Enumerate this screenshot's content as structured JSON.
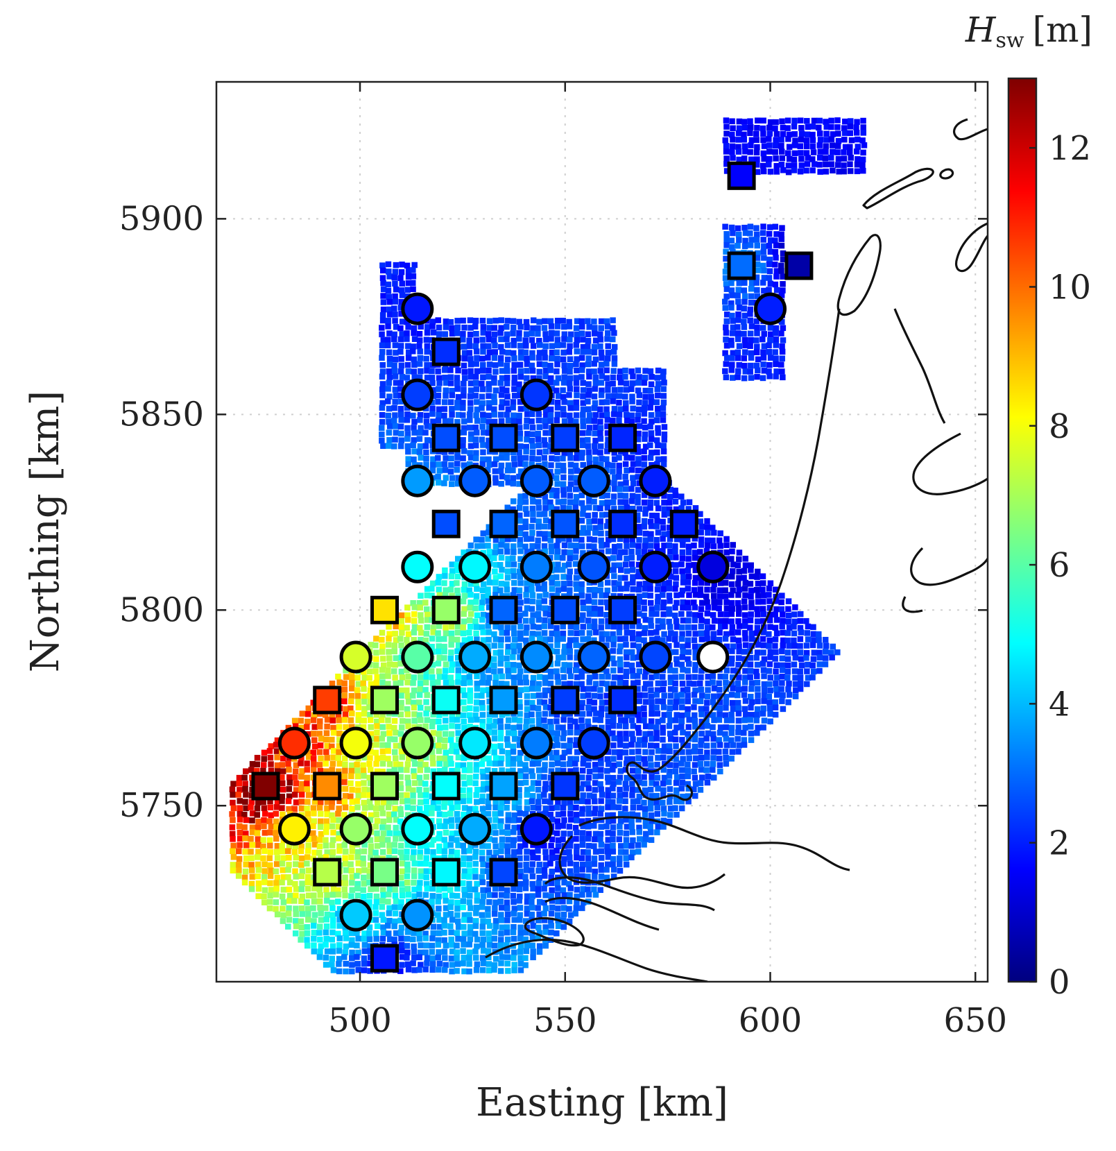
{
  "chart_data": {
    "type": "scatter",
    "title": "",
    "xlabel": "Easting [km]",
    "ylabel": "Northing [km]",
    "xlim": [
      465,
      653
    ],
    "ylim": [
      5705,
      5935
    ],
    "xticks": [
      500,
      550,
      600,
      650
    ],
    "yticks": [
      5750,
      5800,
      5850,
      5900
    ],
    "grid": true,
    "colorbar": {
      "label_main": "H",
      "label_sub": "sw",
      "label_unit": "[m]",
      "range": [
        0,
        13
      ],
      "ticks": [
        0,
        2,
        4,
        6,
        8,
        10,
        12
      ],
      "colormap": "jet"
    },
    "series": [
      {
        "marker": "circle",
        "points": [
          {
            "x": 514,
            "y": 5877,
            "v": 1.9
          },
          {
            "x": 600,
            "y": 5877,
            "v": 2.0
          },
          {
            "x": 514,
            "y": 5855,
            "v": 2.4
          },
          {
            "x": 543,
            "y": 5855,
            "v": 2.3
          },
          {
            "x": 514,
            "y": 5833,
            "v": 3.6
          },
          {
            "x": 528,
            "y": 5833,
            "v": 2.8
          },
          {
            "x": 543,
            "y": 5833,
            "v": 2.8
          },
          {
            "x": 557,
            "y": 5833,
            "v": 2.8
          },
          {
            "x": 572,
            "y": 5833,
            "v": 2.0
          },
          {
            "x": 514,
            "y": 5811,
            "v": 4.9
          },
          {
            "x": 528,
            "y": 5811,
            "v": 4.8
          },
          {
            "x": 543,
            "y": 5811,
            "v": 3.2
          },
          {
            "x": 557,
            "y": 5811,
            "v": 2.7
          },
          {
            "x": 572,
            "y": 5811,
            "v": 2.0
          },
          {
            "x": 586,
            "y": 5811,
            "v": 1.2
          },
          {
            "x": 499,
            "y": 5788,
            "v": 7.6
          },
          {
            "x": 514,
            "y": 5788,
            "v": 6.0
          },
          {
            "x": 528,
            "y": 5788,
            "v": 3.8
          },
          {
            "x": 543,
            "y": 5788,
            "v": 3.4
          },
          {
            "x": 557,
            "y": 5788,
            "v": 2.9
          },
          {
            "x": 572,
            "y": 5788,
            "v": 2.5
          },
          {
            "x": 484,
            "y": 5766,
            "v": 10.8
          },
          {
            "x": 499,
            "y": 5766,
            "v": 8.0
          },
          {
            "x": 514,
            "y": 5766,
            "v": 6.8
          },
          {
            "x": 528,
            "y": 5766,
            "v": 4.6
          },
          {
            "x": 543,
            "y": 5766,
            "v": 3.2
          },
          {
            "x": 557,
            "y": 5766,
            "v": 2.4
          },
          {
            "x": 484,
            "y": 5744,
            "v": 8.3
          },
          {
            "x": 499,
            "y": 5744,
            "v": 6.8
          },
          {
            "x": 514,
            "y": 5744,
            "v": 4.9
          },
          {
            "x": 528,
            "y": 5744,
            "v": 3.8
          },
          {
            "x": 543,
            "y": 5744,
            "v": 1.9
          },
          {
            "x": 499,
            "y": 5722,
            "v": 4.2
          },
          {
            "x": 514,
            "y": 5722,
            "v": 3.5
          }
        ]
      },
      {
        "marker": "square",
        "points": [
          {
            "x": 593,
            "y": 5911,
            "v": 1.6
          },
          {
            "x": 593,
            "y": 5888,
            "v": 3.0
          },
          {
            "x": 607,
            "y": 5888,
            "v": 0.5
          },
          {
            "x": 521,
            "y": 5866,
            "v": 2.2
          },
          {
            "x": 521,
            "y": 5844,
            "v": 2.6
          },
          {
            "x": 535,
            "y": 5844,
            "v": 2.6
          },
          {
            "x": 550,
            "y": 5844,
            "v": 2.4
          },
          {
            "x": 564,
            "y": 5844,
            "v": 2.1
          },
          {
            "x": 521,
            "y": 5822,
            "v": 2.6
          },
          {
            "x": 535,
            "y": 5822,
            "v": 2.9
          },
          {
            "x": 550,
            "y": 5822,
            "v": 2.7
          },
          {
            "x": 564,
            "y": 5822,
            "v": 2.2
          },
          {
            "x": 579,
            "y": 5822,
            "v": 2.0
          },
          {
            "x": 506,
            "y": 5800,
            "v": 8.5
          },
          {
            "x": 521,
            "y": 5800,
            "v": 6.8
          },
          {
            "x": 535,
            "y": 5800,
            "v": 2.9
          },
          {
            "x": 550,
            "y": 5800,
            "v": 2.6
          },
          {
            "x": 564,
            "y": 5800,
            "v": 2.4
          },
          {
            "x": 492,
            "y": 5777,
            "v": 10.6
          },
          {
            "x": 506,
            "y": 5777,
            "v": 6.9
          },
          {
            "x": 521,
            "y": 5777,
            "v": 5.0
          },
          {
            "x": 535,
            "y": 5777,
            "v": 3.6
          },
          {
            "x": 550,
            "y": 5777,
            "v": 2.4
          },
          {
            "x": 564,
            "y": 5777,
            "v": 2.2
          },
          {
            "x": 477,
            "y": 5755,
            "v": 13.0
          },
          {
            "x": 492,
            "y": 5755,
            "v": 9.6
          },
          {
            "x": 506,
            "y": 5755,
            "v": 6.9
          },
          {
            "x": 521,
            "y": 5755,
            "v": 4.9
          },
          {
            "x": 535,
            "y": 5755,
            "v": 3.7
          },
          {
            "x": 550,
            "y": 5755,
            "v": 2.3
          },
          {
            "x": 492,
            "y": 5733,
            "v": 7.2
          },
          {
            "x": 506,
            "y": 5733,
            "v": 6.4
          },
          {
            "x": 521,
            "y": 5733,
            "v": 4.8
          },
          {
            "x": 535,
            "y": 5733,
            "v": 2.5
          },
          {
            "x": 506,
            "y": 5711,
            "v": 1.9
          }
        ]
      }
    ],
    "white_circle": {
      "x": 586,
      "y": 5788
    }
  }
}
